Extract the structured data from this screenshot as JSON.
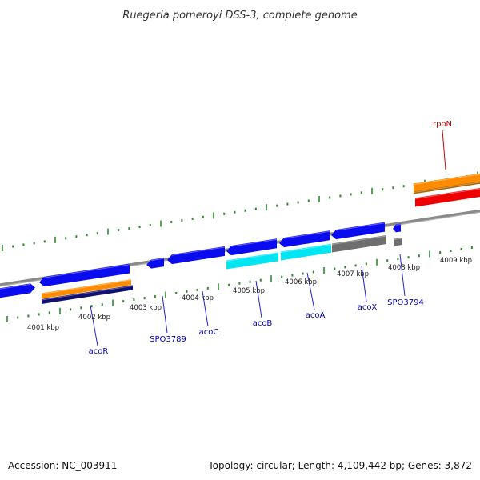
{
  "title": "Ruegeria pomeroyi DSS-3, complete genome",
  "footer": {
    "accession": "Accession: NC_003911",
    "stats": "Topology: circular; Length: 4,109,442 bp; Genes: 3,872"
  },
  "colors": {
    "backbone": "#8a8a8a",
    "tick": "#2a8a2a",
    "gene_plus": "#0b0bf0",
    "gene_minus_cyan": "#00e5f2",
    "gene_minus_gray": "#6e6e6e",
    "orange": "#ff8c00",
    "red": "#ee0000",
    "navy": "#101070",
    "label_blue": "#0000aa",
    "label_red": "#cc0000",
    "leader": "#2222cc"
  },
  "scale_labels": [
    "4001 kbp",
    "4002 kbp",
    "4003 kbp",
    "4004 kbp",
    "4005 kbp",
    "4006 kbp",
    "4007 kbp",
    "4008 kbp",
    "4009 kbp"
  ],
  "gene_labels": [
    {
      "name": "acoR",
      "color": "blue"
    },
    {
      "name": "SPO3789",
      "color": "blue"
    },
    {
      "name": "acoC",
      "color": "blue"
    },
    {
      "name": "acoB",
      "color": "blue"
    },
    {
      "name": "acoA",
      "color": "blue"
    },
    {
      "name": "acoX",
      "color": "blue"
    },
    {
      "name": "SPO3794",
      "color": "blue"
    },
    {
      "name": "rpoN",
      "color": "red"
    }
  ]
}
